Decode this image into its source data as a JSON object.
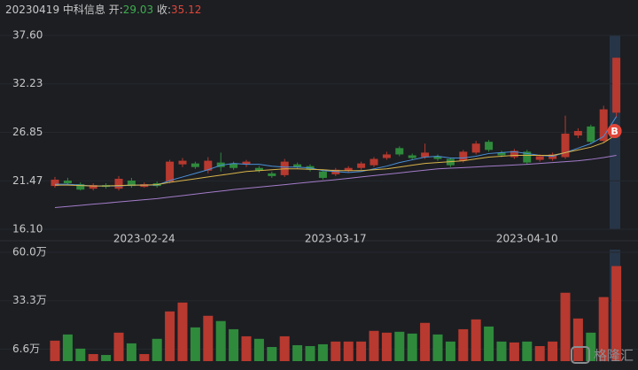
{
  "header": {
    "date": "20230419",
    "name": "中科信息",
    "open_label": "开:",
    "open": "29.03",
    "close_label": "收:",
    "close": "35.12"
  },
  "watermark": "格隆汇",
  "chart_data": [
    {
      "type": "candlestick",
      "categories": [
        null,
        null,
        null,
        null,
        null,
        null,
        null,
        "2023-02-24",
        null,
        null,
        null,
        null,
        null,
        null,
        null,
        null,
        null,
        null,
        null,
        null,
        null,
        null,
        "2023-03-17",
        null,
        null,
        null,
        null,
        null,
        null,
        null,
        null,
        null,
        null,
        null,
        null,
        null,
        null,
        "2023-04-10",
        null,
        null,
        null,
        null,
        null,
        null,
        null
      ],
      "open": [
        20.9,
        21.5,
        21.1,
        20.6,
        21.0,
        20.6,
        21.5,
        20.8,
        21.2,
        21.4,
        23.3,
        23.4,
        22.6,
        23.5,
        23.4,
        23.3,
        22.9,
        22.3,
        22.1,
        23.3,
        23.1,
        22.5,
        22.2,
        22.6,
        22.9,
        23.2,
        24.0,
        25.1,
        24.3,
        24.1,
        24.2,
        23.9,
        23.7,
        24.6,
        25.8,
        24.6,
        24.1,
        24.7,
        23.8,
        23.9,
        24.1,
        26.5,
        27.5,
        25.9,
        29.03
      ],
      "close": [
        21.6,
        21.2,
        20.5,
        21.0,
        20.8,
        21.7,
        20.9,
        21.1,
        20.9,
        23.6,
        23.7,
        23.0,
        23.7,
        23.0,
        22.9,
        23.6,
        22.6,
        22.0,
        23.6,
        23.0,
        22.7,
        21.8,
        22.7,
        22.9,
        23.4,
        23.9,
        24.4,
        24.4,
        24.0,
        24.6,
        23.9,
        23.2,
        24.7,
        25.6,
        24.9,
        24.3,
        24.8,
        23.5,
        24.2,
        24.4,
        26.7,
        27.0,
        25.8,
        29.4,
        35.12
      ],
      "high": [
        21.9,
        21.8,
        21.3,
        21.2,
        21.2,
        22.0,
        21.8,
        21.3,
        21.4,
        23.8,
        24.0,
        23.6,
        24.1,
        24.6,
        23.6,
        23.8,
        23.1,
        22.5,
        23.9,
        23.5,
        23.3,
        22.7,
        22.9,
        23.1,
        23.6,
        24.1,
        24.7,
        25.3,
        24.5,
        25.6,
        24.4,
        24.0,
        24.9,
        25.9,
        26.0,
        24.8,
        25.0,
        24.9,
        24.4,
        24.6,
        28.7,
        27.3,
        27.7,
        29.8,
        35.12
      ],
      "low": [
        20.7,
        21.0,
        20.4,
        20.4,
        20.6,
        20.4,
        20.7,
        20.7,
        20.7,
        21.2,
        23.0,
        22.8,
        22.3,
        22.5,
        22.7,
        23.0,
        22.4,
        21.8,
        21.9,
        22.8,
        22.5,
        21.6,
        22.0,
        22.4,
        22.7,
        23.0,
        23.8,
        24.2,
        23.8,
        23.9,
        23.7,
        23.0,
        23.5,
        24.4,
        24.7,
        24.1,
        23.9,
        23.3,
        23.6,
        23.7,
        23.9,
        26.2,
        25.6,
        25.7,
        28.5
      ],
      "up_color": "#b8392f",
      "down_color": "#2f8a3c",
      "ylim": [
        16.1,
        37.6
      ],
      "yticks": [
        {
          "value": 37.6,
          "label": "37.60"
        },
        32.23,
        26.85,
        21.47,
        {
          "value": 16.1,
          "label": "16.10"
        }
      ],
      "lines": [
        {
          "color": "#4a90d9",
          "values": [
            21.1,
            21.1,
            21.0,
            20.9,
            20.9,
            20.9,
            21.0,
            21.0,
            21.0,
            21.5,
            21.9,
            22.3,
            22.7,
            23.2,
            23.4,
            23.3,
            23.3,
            23.1,
            23.0,
            23.0,
            22.9,
            22.6,
            22.5,
            22.4,
            22.5,
            22.8,
            23.1,
            23.5,
            23.8,
            24.1,
            24.2,
            24.0,
            24.0,
            24.2,
            24.5,
            24.6,
            24.7,
            24.5,
            24.3,
            24.2,
            24.6,
            25.1,
            25.6,
            26.4,
            28.6
          ]
        },
        {
          "color": "#d9b44a",
          "values": [
            21.0,
            21.0,
            20.95,
            20.9,
            20.9,
            20.95,
            21.0,
            21.0,
            21.05,
            21.3,
            21.5,
            21.7,
            21.9,
            22.1,
            22.3,
            22.5,
            22.6,
            22.7,
            22.8,
            22.8,
            22.75,
            22.7,
            22.6,
            22.6,
            22.6,
            22.7,
            22.8,
            23.0,
            23.2,
            23.4,
            23.5,
            23.6,
            23.7,
            23.9,
            24.1,
            24.2,
            24.3,
            24.3,
            24.3,
            24.3,
            24.6,
            24.9,
            25.2,
            25.7,
            26.6
          ]
        },
        {
          "color": "#a47cc9",
          "values": [
            18.5,
            18.63,
            18.75,
            18.88,
            19.0,
            19.13,
            19.25,
            19.38,
            19.5,
            19.67,
            19.83,
            20.0,
            20.17,
            20.33,
            20.5,
            20.64,
            20.78,
            20.91,
            21.05,
            21.19,
            21.33,
            21.46,
            21.6,
            21.75,
            21.9,
            22.05,
            22.2,
            22.35,
            22.5,
            22.65,
            22.8,
            22.87,
            22.94,
            23.01,
            23.09,
            23.16,
            23.23,
            23.3,
            23.4,
            23.5,
            23.6,
            23.7,
            23.85,
            24.05,
            24.3
          ]
        }
      ],
      "signal": "B"
    },
    {
      "type": "bar",
      "values": [
        11.3,
        14.7,
        6.9,
        3.9,
        3.4,
        15.7,
        9.8,
        3.9,
        12.3,
        27.4,
        32.3,
        18.6,
        25.0,
        22.1,
        17.6,
        13.7,
        12.3,
        7.8,
        13.7,
        8.8,
        8.3,
        9.3,
        10.8,
        10.8,
        10.8,
        16.7,
        15.7,
        16.2,
        15.2,
        21.1,
        14.7,
        10.8,
        17.6,
        23.0,
        19.1,
        10.8,
        10.3,
        10.8,
        8.3,
        10.8,
        37.7,
        23.5,
        15.7,
        35.3,
        52.4
      ],
      "ylim": [
        0,
        60
      ],
      "yticks": [
        {
          "value": 60,
          "label": "60.0万"
        },
        {
          "value": 33.3,
          "label": "33.3万"
        },
        {
          "value": 6.6,
          "label": "6.6万"
        }
      ]
    }
  ]
}
